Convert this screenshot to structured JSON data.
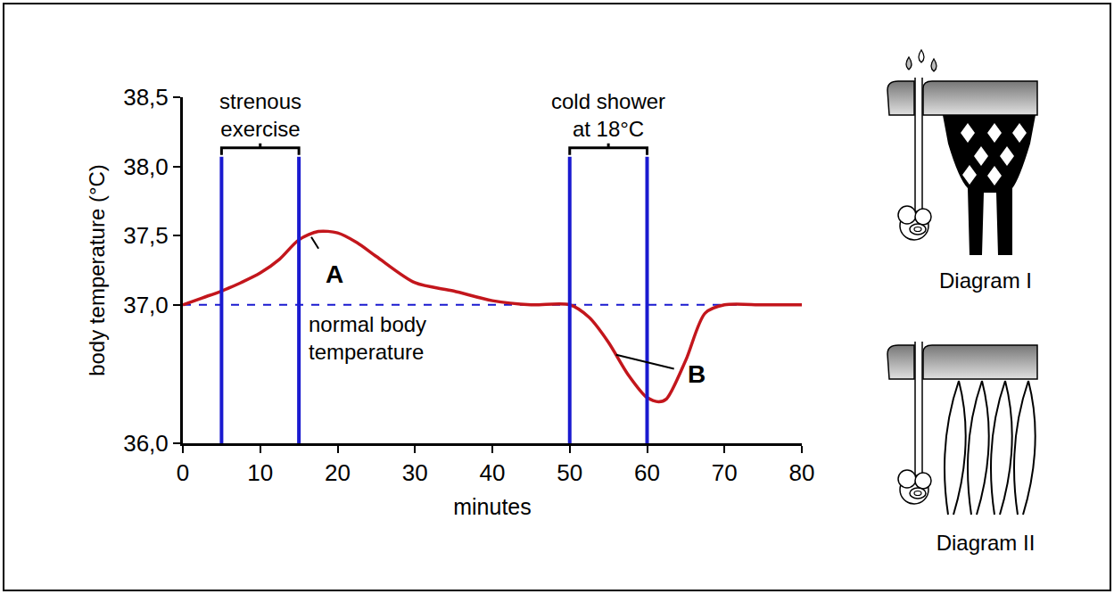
{
  "chart_data": {
    "type": "line",
    "x_label": "minutes",
    "y_label": "body temperature (°C)",
    "x": [
      0,
      2.5,
      5,
      7.5,
      10,
      12.5,
      15,
      17.5,
      20,
      22.5,
      25,
      30,
      35,
      40,
      45,
      50,
      52.5,
      55,
      57.5,
      60,
      61.5,
      62.5,
      65,
      67.5,
      70,
      75,
      80
    ],
    "values": [
      37.0,
      37.05,
      37.1,
      37.16,
      37.23,
      37.33,
      37.47,
      37.53,
      37.52,
      37.45,
      37.35,
      37.16,
      37.1,
      37.03,
      37.0,
      37.0,
      36.91,
      36.73,
      36.5,
      36.33,
      36.3,
      36.32,
      36.6,
      36.94,
      37.0,
      37.0,
      37.0
    ],
    "color": "#c3161c",
    "line_style": "solid",
    "xlim": [
      0,
      80
    ],
    "xticks": [
      0,
      10,
      20,
      30,
      40,
      50,
      60,
      70,
      80
    ],
    "ylim": [
      36.0,
      38.5
    ],
    "yticks": [
      {
        "value": 36.0,
        "label": "36,0"
      },
      {
        "value": 37.0,
        "label": "37,0"
      },
      {
        "value": 37.5,
        "label": "37,5"
      },
      {
        "value": 38.0,
        "label": "38,0"
      },
      {
        "value": 38.5,
        "label": "38,5"
      }
    ],
    "grid": false,
    "periods": [
      {
        "label": "strenous exercise",
        "start": 5,
        "end": 15,
        "ymax": 38.07,
        "color": "#1a1ad0"
      },
      {
        "label": "cold shower at 18°C",
        "start": 50,
        "end": 60,
        "ymax": 38.07,
        "color": "#1a1ad0"
      }
    ],
    "reference_line": {
      "label": "normal body temperature",
      "value": 37.0,
      "color": "#1a1ad0",
      "line_style": "dash"
    },
    "annotations": [
      {
        "text": "A",
        "x": 16.6,
        "y": 37.49
      },
      {
        "text": "B",
        "x": 56,
        "y": 36.64
      }
    ]
  },
  "diagrams": [
    {
      "label": "Diagram I"
    },
    {
      "label": "Diagram II"
    }
  ]
}
